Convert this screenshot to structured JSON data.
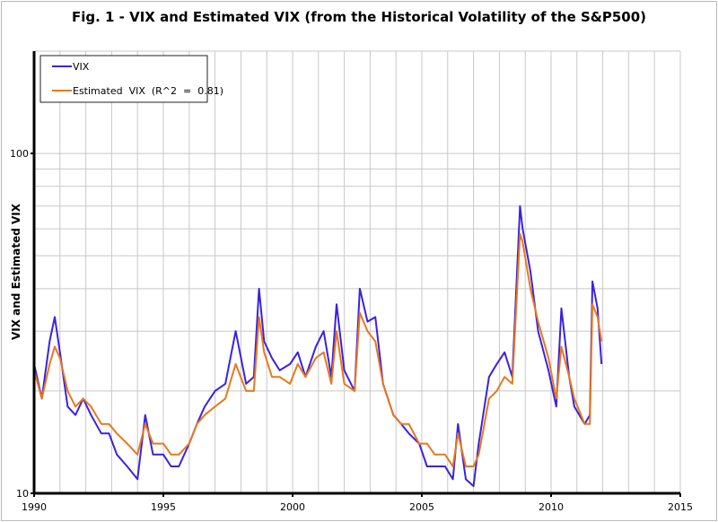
{
  "chart_data": {
    "type": "line",
    "title": "Fig. 1 - VIX and Estimated VIX (from the Historical Volatility of the S&P500)",
    "xlabel": "",
    "ylabel": "VIX and Estimated VIX",
    "xlim": [
      1990,
      2015
    ],
    "ylim": [
      10,
      200
    ],
    "yscale": "log",
    "x_ticks": [
      "1990",
      "1995",
      "2000",
      "2005",
      "2010",
      "2015"
    ],
    "y_ticks": [
      "10",
      "100"
    ],
    "grid": true,
    "legend_position": "top-left",
    "x": [
      1990.0,
      1990.3,
      1990.6,
      1990.8,
      1991.0,
      1991.3,
      1991.6,
      1991.9,
      1992.2,
      1992.6,
      1992.9,
      1993.2,
      1993.6,
      1994.0,
      1994.3,
      1994.6,
      1995.0,
      1995.3,
      1995.6,
      1996.0,
      1996.3,
      1996.6,
      1997.0,
      1997.4,
      1997.8,
      1998.2,
      1998.5,
      1998.7,
      1998.9,
      1999.2,
      1999.5,
      1999.9,
      2000.2,
      2000.5,
      2000.9,
      2001.2,
      2001.5,
      2001.7,
      2002.0,
      2002.4,
      2002.6,
      2002.9,
      2003.2,
      2003.5,
      2003.9,
      2004.2,
      2004.5,
      2004.9,
      2005.2,
      2005.5,
      2005.9,
      2006.2,
      2006.4,
      2006.7,
      2007.0,
      2007.2,
      2007.6,
      2007.9,
      2008.2,
      2008.5,
      2008.8,
      2008.9,
      2009.2,
      2009.5,
      2009.9,
      2010.2,
      2010.4,
      2010.7,
      2010.9,
      2011.3,
      2011.5,
      2011.6,
      2011.8,
      2011.95
    ],
    "series": [
      {
        "name": "VIX",
        "color": "#3a22e0",
        "values": [
          24,
          19,
          28,
          33,
          26,
          18,
          17,
          19,
          17,
          15,
          15,
          13,
          12,
          11,
          17,
          13,
          13,
          12,
          12,
          14,
          16,
          18,
          20,
          21,
          30,
          21,
          22,
          40,
          28,
          25,
          23,
          24,
          26,
          22,
          27,
          30,
          22,
          36,
          23,
          20,
          40,
          32,
          33,
          21,
          17,
          16,
          15,
          14,
          12,
          12,
          12,
          11,
          16,
          11,
          10.5,
          14,
          22,
          24,
          26,
          22,
          70,
          60,
          45,
          30,
          23,
          18,
          35,
          22,
          18,
          16,
          17,
          42,
          35,
          24
        ]
      },
      {
        "name": "Estimated  VIX  (R^2  =  0.81)",
        "color": "#e8781e",
        "values": [
          23,
          19,
          24,
          27,
          25,
          20,
          18,
          19,
          18,
          16,
          16,
          15,
          14,
          13,
          16,
          14,
          14,
          13,
          13,
          14,
          16,
          17,
          18,
          19,
          24,
          20,
          20,
          33,
          26,
          22,
          22,
          21,
          24,
          22,
          25,
          26,
          21,
          30,
          21,
          20,
          34,
          30,
          28,
          21,
          17,
          16,
          16,
          14,
          14,
          13,
          13,
          12,
          15,
          12,
          12,
          13,
          19,
          20,
          22,
          21,
          58,
          55,
          40,
          32,
          25,
          19,
          27,
          22,
          19,
          16,
          16,
          36,
          33,
          28
        ]
      }
    ]
  }
}
